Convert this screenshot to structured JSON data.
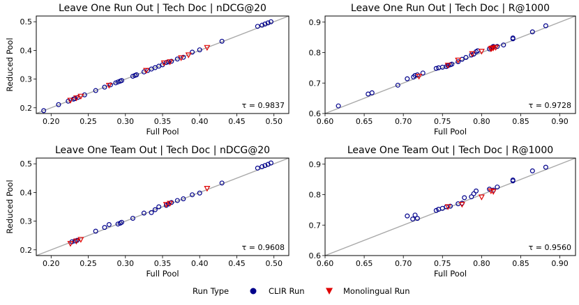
{
  "colors": {
    "clir": "#00008b",
    "mono": "#e00000",
    "diag": "#a9a9a9"
  },
  "legend": {
    "title": "Run Type",
    "items": [
      "CLIR Run",
      "Monolingual Run"
    ]
  },
  "chart_data": [
    {
      "type": "scatter",
      "title": "Leave One Run Out |  Tech Doc | nDCG@20",
      "xlabel": "Full Pool",
      "ylabel": "Reduced Pool",
      "xlim": [
        0.18,
        0.52
      ],
      "ylim": [
        0.18,
        0.52
      ],
      "xticks": [
        "0.20",
        "0.25",
        "0.30",
        "0.35",
        "0.40",
        "0.45",
        "0.50"
      ],
      "xtick_values": [
        0.2,
        0.25,
        0.3,
        0.35,
        0.4,
        0.45,
        0.5
      ],
      "yticks": [
        "0.2",
        "0.3",
        "0.4",
        "0.5"
      ],
      "ytick_values": [
        0.2,
        0.3,
        0.4,
        0.5
      ],
      "annotation": "τ = 0.9837",
      "series": [
        {
          "name": "CLIR Run",
          "marker": "circle",
          "points": [
            [
              0.19,
              0.19
            ],
            [
              0.21,
              0.211
            ],
            [
              0.223,
              0.223
            ],
            [
              0.23,
              0.23
            ],
            [
              0.232,
              0.232
            ],
            [
              0.236,
              0.236
            ],
            [
              0.245,
              0.245
            ],
            [
              0.26,
              0.26
            ],
            [
              0.272,
              0.272
            ],
            [
              0.28,
              0.28
            ],
            [
              0.287,
              0.287
            ],
            [
              0.29,
              0.29
            ],
            [
              0.293,
              0.293
            ],
            [
              0.295,
              0.295
            ],
            [
              0.31,
              0.31
            ],
            [
              0.313,
              0.313
            ],
            [
              0.315,
              0.315
            ],
            [
              0.325,
              0.325
            ],
            [
              0.33,
              0.33
            ],
            [
              0.335,
              0.335
            ],
            [
              0.34,
              0.34
            ],
            [
              0.345,
              0.345
            ],
            [
              0.35,
              0.35
            ],
            [
              0.355,
              0.358
            ],
            [
              0.358,
              0.36
            ],
            [
              0.362,
              0.362
            ],
            [
              0.37,
              0.37
            ],
            [
              0.378,
              0.376
            ],
            [
              0.39,
              0.394
            ],
            [
              0.4,
              0.402
            ],
            [
              0.43,
              0.432
            ],
            [
              0.478,
              0.484
            ],
            [
              0.484,
              0.488
            ],
            [
              0.488,
              0.492
            ],
            [
              0.492,
              0.496
            ],
            [
              0.496,
              0.5
            ]
          ]
        },
        {
          "name": "Monolingual Run",
          "marker": "triangle_down",
          "points": [
            [
              0.226,
              0.226
            ],
            [
              0.234,
              0.234
            ],
            [
              0.24,
              0.24
            ],
            [
              0.278,
              0.278
            ],
            [
              0.328,
              0.33
            ],
            [
              0.352,
              0.356
            ],
            [
              0.36,
              0.36
            ],
            [
              0.375,
              0.374
            ],
            [
              0.385,
              0.384
            ],
            [
              0.41,
              0.41
            ]
          ]
        }
      ]
    },
    {
      "type": "scatter",
      "title": "Leave One Run Out |  Tech Doc | R@1000",
      "xlabel": "Full Pool",
      "ylabel": "",
      "xlim": [
        0.6,
        0.92
      ],
      "ylim": [
        0.6,
        0.92
      ],
      "xticks": [
        "0.60",
        "0.65",
        "0.70",
        "0.75",
        "0.80",
        "0.85",
        "0.90"
      ],
      "xtick_values": [
        0.6,
        0.65,
        0.7,
        0.75,
        0.8,
        0.85,
        0.9
      ],
      "yticks": [
        "0.6",
        "0.7",
        "0.8",
        "0.9"
      ],
      "ytick_values": [
        0.6,
        0.7,
        0.8,
        0.9
      ],
      "annotation": "τ = 0.9728",
      "series": [
        {
          "name": "CLIR Run",
          "marker": "circle",
          "points": [
            [
              0.617,
              0.625
            ],
            [
              0.655,
              0.664
            ],
            [
              0.66,
              0.668
            ],
            [
              0.693,
              0.693
            ],
            [
              0.705,
              0.714
            ],
            [
              0.713,
              0.72
            ],
            [
              0.715,
              0.725
            ],
            [
              0.718,
              0.727
            ],
            [
              0.725,
              0.733
            ],
            [
              0.742,
              0.748
            ],
            [
              0.745,
              0.75
            ],
            [
              0.75,
              0.752
            ],
            [
              0.755,
              0.754
            ],
            [
              0.757,
              0.757
            ],
            [
              0.76,
              0.76
            ],
            [
              0.762,
              0.762
            ],
            [
              0.77,
              0.77
            ],
            [
              0.775,
              0.778
            ],
            [
              0.78,
              0.784
            ],
            [
              0.787,
              0.792
            ],
            [
              0.79,
              0.795
            ],
            [
              0.793,
              0.803
            ],
            [
              0.795,
              0.806
            ],
            [
              0.81,
              0.812
            ],
            [
              0.812,
              0.815
            ],
            [
              0.814,
              0.818
            ],
            [
              0.815,
              0.82
            ],
            [
              0.82,
              0.82
            ],
            [
              0.828,
              0.825
            ],
            [
              0.84,
              0.845
            ],
            [
              0.84,
              0.848
            ],
            [
              0.865,
              0.868
            ],
            [
              0.882,
              0.888
            ]
          ]
        },
        {
          "name": "Monolingual Run",
          "marker": "triangle_down",
          "points": [
            [
              0.72,
              0.722
            ],
            [
              0.757,
              0.758
            ],
            [
              0.77,
              0.775
            ],
            [
              0.788,
              0.796
            ],
            [
              0.8,
              0.804
            ],
            [
              0.812,
              0.812
            ],
            [
              0.813,
              0.814
            ],
            [
              0.815,
              0.815
            ],
            [
              0.818,
              0.817
            ]
          ]
        }
      ]
    },
    {
      "type": "scatter",
      "title": "Leave One Team Out |  Tech Doc | nDCG@20",
      "xlabel": "Full Pool",
      "ylabel": "Reduced Pool",
      "xlim": [
        0.18,
        0.52
      ],
      "ylim": [
        0.18,
        0.52
      ],
      "xticks": [
        "0.20",
        "0.25",
        "0.30",
        "0.35",
        "0.40",
        "0.45",
        "0.50"
      ],
      "xtick_values": [
        0.2,
        0.25,
        0.3,
        0.35,
        0.4,
        0.45,
        0.5
      ],
      "yticks": [
        "0.2",
        "0.3",
        "0.4",
        "0.5"
      ],
      "ytick_values": [
        0.2,
        0.3,
        0.4,
        0.5
      ],
      "annotation": "τ = 0.9608",
      "series": [
        {
          "name": "CLIR Run",
          "marker": "circle",
          "points": [
            [
              0.228,
              0.228
            ],
            [
              0.232,
              0.231
            ],
            [
              0.235,
              0.233
            ],
            [
              0.26,
              0.265
            ],
            [
              0.272,
              0.278
            ],
            [
              0.278,
              0.288
            ],
            [
              0.29,
              0.29
            ],
            [
              0.293,
              0.293
            ],
            [
              0.295,
              0.296
            ],
            [
              0.31,
              0.31
            ],
            [
              0.325,
              0.328
            ],
            [
              0.335,
              0.33
            ],
            [
              0.34,
              0.34
            ],
            [
              0.345,
              0.35
            ],
            [
              0.355,
              0.355
            ],
            [
              0.358,
              0.36
            ],
            [
              0.362,
              0.365
            ],
            [
              0.37,
              0.372
            ],
            [
              0.378,
              0.378
            ],
            [
              0.39,
              0.392
            ],
            [
              0.4,
              0.398
            ],
            [
              0.43,
              0.433
            ],
            [
              0.478,
              0.485
            ],
            [
              0.484,
              0.49
            ],
            [
              0.488,
              0.494
            ],
            [
              0.492,
              0.498
            ],
            [
              0.496,
              0.503
            ]
          ]
        },
        {
          "name": "Monolingual Run",
          "marker": "triangle_down",
          "points": [
            [
              0.226,
              0.222
            ],
            [
              0.234,
              0.23
            ],
            [
              0.24,
              0.236
            ],
            [
              0.355,
              0.358
            ],
            [
              0.36,
              0.362
            ],
            [
              0.41,
              0.414
            ]
          ]
        }
      ]
    },
    {
      "type": "scatter",
      "title": "Leave One Team Out |  Tech Doc | R@1000",
      "xlabel": "Full Pool",
      "ylabel": "",
      "xlim": [
        0.6,
        0.92
      ],
      "ylim": [
        0.6,
        0.92
      ],
      "xticks": [
        "0.60",
        "0.65",
        "0.70",
        "0.75",
        "0.80",
        "0.85",
        "0.90"
      ],
      "xtick_values": [
        0.6,
        0.65,
        0.7,
        0.75,
        0.8,
        0.85,
        0.9
      ],
      "yticks": [
        "0.6",
        "0.7",
        "0.8",
        "0.9"
      ],
      "ytick_values": [
        0.6,
        0.7,
        0.8,
        0.9
      ],
      "annotation": "τ = 0.9560",
      "series": [
        {
          "name": "CLIR Run",
          "marker": "circle",
          "points": [
            [
              0.705,
              0.73
            ],
            [
              0.712,
              0.72
            ],
            [
              0.715,
              0.733
            ],
            [
              0.718,
              0.722
            ],
            [
              0.742,
              0.748
            ],
            [
              0.745,
              0.752
            ],
            [
              0.75,
              0.755
            ],
            [
              0.755,
              0.76
            ],
            [
              0.76,
              0.762
            ],
            [
              0.77,
              0.77
            ],
            [
              0.775,
              0.772
            ],
            [
              0.778,
              0.79
            ],
            [
              0.787,
              0.793
            ],
            [
              0.79,
              0.803
            ],
            [
              0.793,
              0.812
            ],
            [
              0.81,
              0.818
            ],
            [
              0.815,
              0.815
            ],
            [
              0.82,
              0.825
            ],
            [
              0.84,
              0.845
            ],
            [
              0.84,
              0.848
            ],
            [
              0.865,
              0.878
            ],
            [
              0.882,
              0.89
            ]
          ]
        },
        {
          "name": "Monolingual Run",
          "marker": "triangle_down",
          "points": [
            [
              0.757,
              0.76
            ],
            [
              0.775,
              0.768
            ],
            [
              0.8,
              0.792
            ],
            [
              0.812,
              0.812
            ],
            [
              0.815,
              0.81
            ]
          ]
        }
      ]
    }
  ]
}
